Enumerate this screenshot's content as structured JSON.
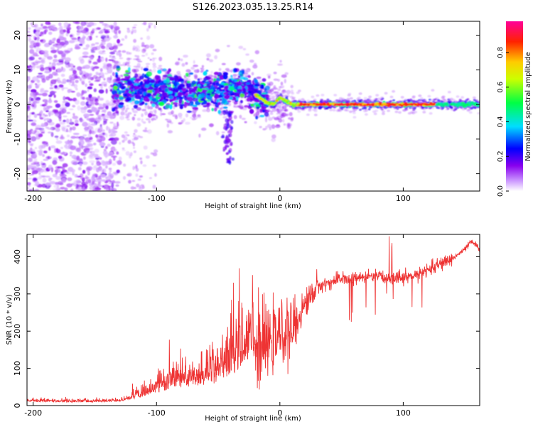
{
  "title": "S126.2023.035.13.25.R14",
  "chart_data": [
    {
      "type": "heatmap",
      "xlabel": "Height of straight line (km)",
      "ylabel": "Frequency (Hz)",
      "xlim": [
        -205,
        162
      ],
      "ylim": [
        -25,
        24
      ],
      "xticks": [
        -200,
        -100,
        0,
        100
      ],
      "yticks": [
        -20,
        -10,
        0,
        10,
        20
      ],
      "colorbar": {
        "label": "Normalized spectral amplitude",
        "range": [
          0,
          1
        ],
        "ticks": [
          "0.0",
          "0.2",
          "0.4",
          "0.6",
          "0.8"
        ],
        "colormap": "rainbow (white → violet → blue → cyan → green → yellow → red → magenta)"
      },
      "ridge_line": {
        "x": [
          -135,
          -120,
          -100,
          -80,
          -60,
          -40,
          -30,
          -20,
          -15,
          -10,
          -5,
          0,
          5,
          10,
          20,
          50,
          100,
          162
        ],
        "y": [
          4,
          5,
          4,
          3.5,
          3.5,
          4,
          5,
          3,
          1.5,
          0.5,
          0,
          2,
          1,
          0,
          0,
          0,
          0,
          0
        ]
      },
      "grid": false
    },
    {
      "type": "line",
      "xlabel": "Height of straight line (km)",
      "ylabel": "SNR (10 * v/v)",
      "xlim": [
        -205,
        162
      ],
      "ylim": [
        0,
        460
      ],
      "xticks": [
        -200,
        -100,
        0,
        100
      ],
      "yticks": [
        0,
        100,
        200,
        300,
        400
      ],
      "line_color": "#ee3333",
      "series": [
        {
          "x": [
            -205,
            -180,
            -150,
            -130,
            -120,
            -110,
            -100,
            -90,
            -80,
            -70,
            -60,
            -50,
            -40,
            -30,
            -20,
            -10,
            0,
            10,
            20,
            30,
            40,
            50,
            60,
            70,
            80,
            90,
            100,
            110,
            120,
            130,
            140,
            150,
            155,
            160,
            162
          ],
          "y": [
            12,
            10,
            10,
            12,
            18,
            28,
            40,
            52,
            58,
            60,
            65,
            75,
            95,
            130,
            150,
            165,
            190,
            200,
            270,
            320,
            330,
            340,
            340,
            345,
            345,
            345,
            345,
            350,
            365,
            380,
            395,
            420,
            440,
            430,
            410
          ]
        }
      ],
      "grid": false
    }
  ]
}
